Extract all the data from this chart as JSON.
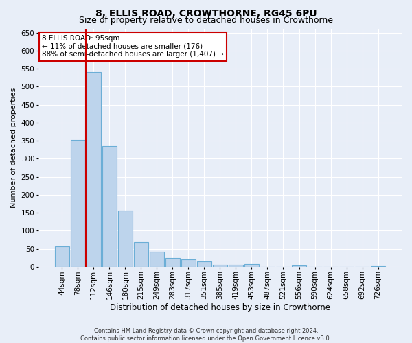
{
  "title": "8, ELLIS ROAD, CROWTHORNE, RG45 6PU",
  "subtitle": "Size of property relative to detached houses in Crowthorne",
  "xlabel": "Distribution of detached houses by size in Crowthorne",
  "ylabel": "Number of detached properties",
  "categories": [
    "44sqm",
    "78sqm",
    "112sqm",
    "146sqm",
    "180sqm",
    "215sqm",
    "249sqm",
    "283sqm",
    "317sqm",
    "351sqm",
    "385sqm",
    "419sqm",
    "453sqm",
    "487sqm",
    "521sqm",
    "556sqm",
    "590sqm",
    "624sqm",
    "658sqm",
    "692sqm",
    "726sqm"
  ],
  "values": [
    57,
    352,
    540,
    335,
    155,
    68,
    42,
    25,
    20,
    15,
    6,
    5,
    7,
    0,
    0,
    4,
    0,
    0,
    0,
    0,
    2
  ],
  "bar_color": "#bdd4ec",
  "bar_edge_color": "#6baed6",
  "background_color": "#e8eef8",
  "grid_color": "#ffffff",
  "vline_color": "#cc0000",
  "annotation_text": "8 ELLIS ROAD: 95sqm\n← 11% of detached houses are smaller (176)\n88% of semi-detached houses are larger (1,407) →",
  "annotation_box_color": "#ffffff",
  "annotation_box_edge_color": "#cc0000",
  "ylim": [
    0,
    660
  ],
  "yticks": [
    0,
    50,
    100,
    150,
    200,
    250,
    300,
    350,
    400,
    450,
    500,
    550,
    600,
    650
  ],
  "footer_line1": "Contains HM Land Registry data © Crown copyright and database right 2024.",
  "footer_line2": "Contains public sector information licensed under the Open Government Licence v3.0.",
  "title_fontsize": 10,
  "subtitle_fontsize": 9,
  "annotation_fontsize": 7.5,
  "ylabel_fontsize": 8,
  "xlabel_fontsize": 8.5,
  "tick_fontsize": 7.5,
  "footer_fontsize": 6
}
